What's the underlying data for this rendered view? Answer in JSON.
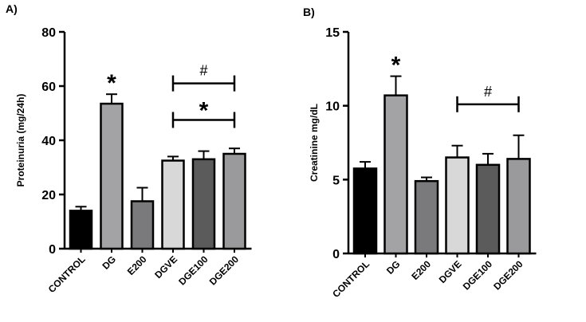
{
  "chart_data": [
    {
      "panel_label": "A)",
      "type": "bar",
      "ylabel": "Proteinuria (mg/24h)",
      "ylim": [
        0,
        80
      ],
      "yticks": [
        0,
        20,
        40,
        60,
        80
      ],
      "categories": [
        "CONTROL",
        "DG",
        "E200",
        "DGVE",
        "DGE100",
        "DGE200"
      ],
      "values": [
        14,
        53.5,
        17.5,
        32.5,
        33,
        35
      ],
      "errors": [
        1.5,
        3.5,
        5,
        1.5,
        3,
        2
      ],
      "bar_colors": [
        "#000000",
        "#a3a3a6",
        "#7a7a7c",
        "#d8d8d8",
        "#5b5b5b",
        "#9a9a9c"
      ],
      "annotations": [
        {
          "text": "*",
          "category": "DG"
        }
      ],
      "brackets": [
        {
          "text": "#",
          "from": "DGVE",
          "to": "DGE200",
          "level": 61
        },
        {
          "text": "*",
          "from": "DGVE",
          "to": "DGE200",
          "level": 47.5
        }
      ]
    },
    {
      "panel_label": "B)",
      "type": "bar",
      "ylabel": "Creatinine mg/dL",
      "ylim": [
        0,
        15
      ],
      "yticks": [
        0,
        5,
        10,
        15
      ],
      "categories": [
        "CONTROL",
        "DG",
        "E200",
        "DGVE",
        "DGE100",
        "DGE200"
      ],
      "values": [
        5.75,
        10.7,
        4.9,
        6.5,
        6,
        6.4
      ],
      "errors": [
        0.45,
        1.3,
        0.25,
        0.8,
        0.75,
        1.6
      ],
      "bar_colors": [
        "#000000",
        "#a3a3a6",
        "#7a7a7c",
        "#d8d8d8",
        "#5b5b5b",
        "#9a9a9c"
      ],
      "annotations": [
        {
          "text": "*",
          "category": "DG"
        }
      ],
      "brackets": [
        {
          "text": "#",
          "from": "DGVE",
          "to": "DGE200",
          "level": 10.1
        }
      ]
    }
  ]
}
